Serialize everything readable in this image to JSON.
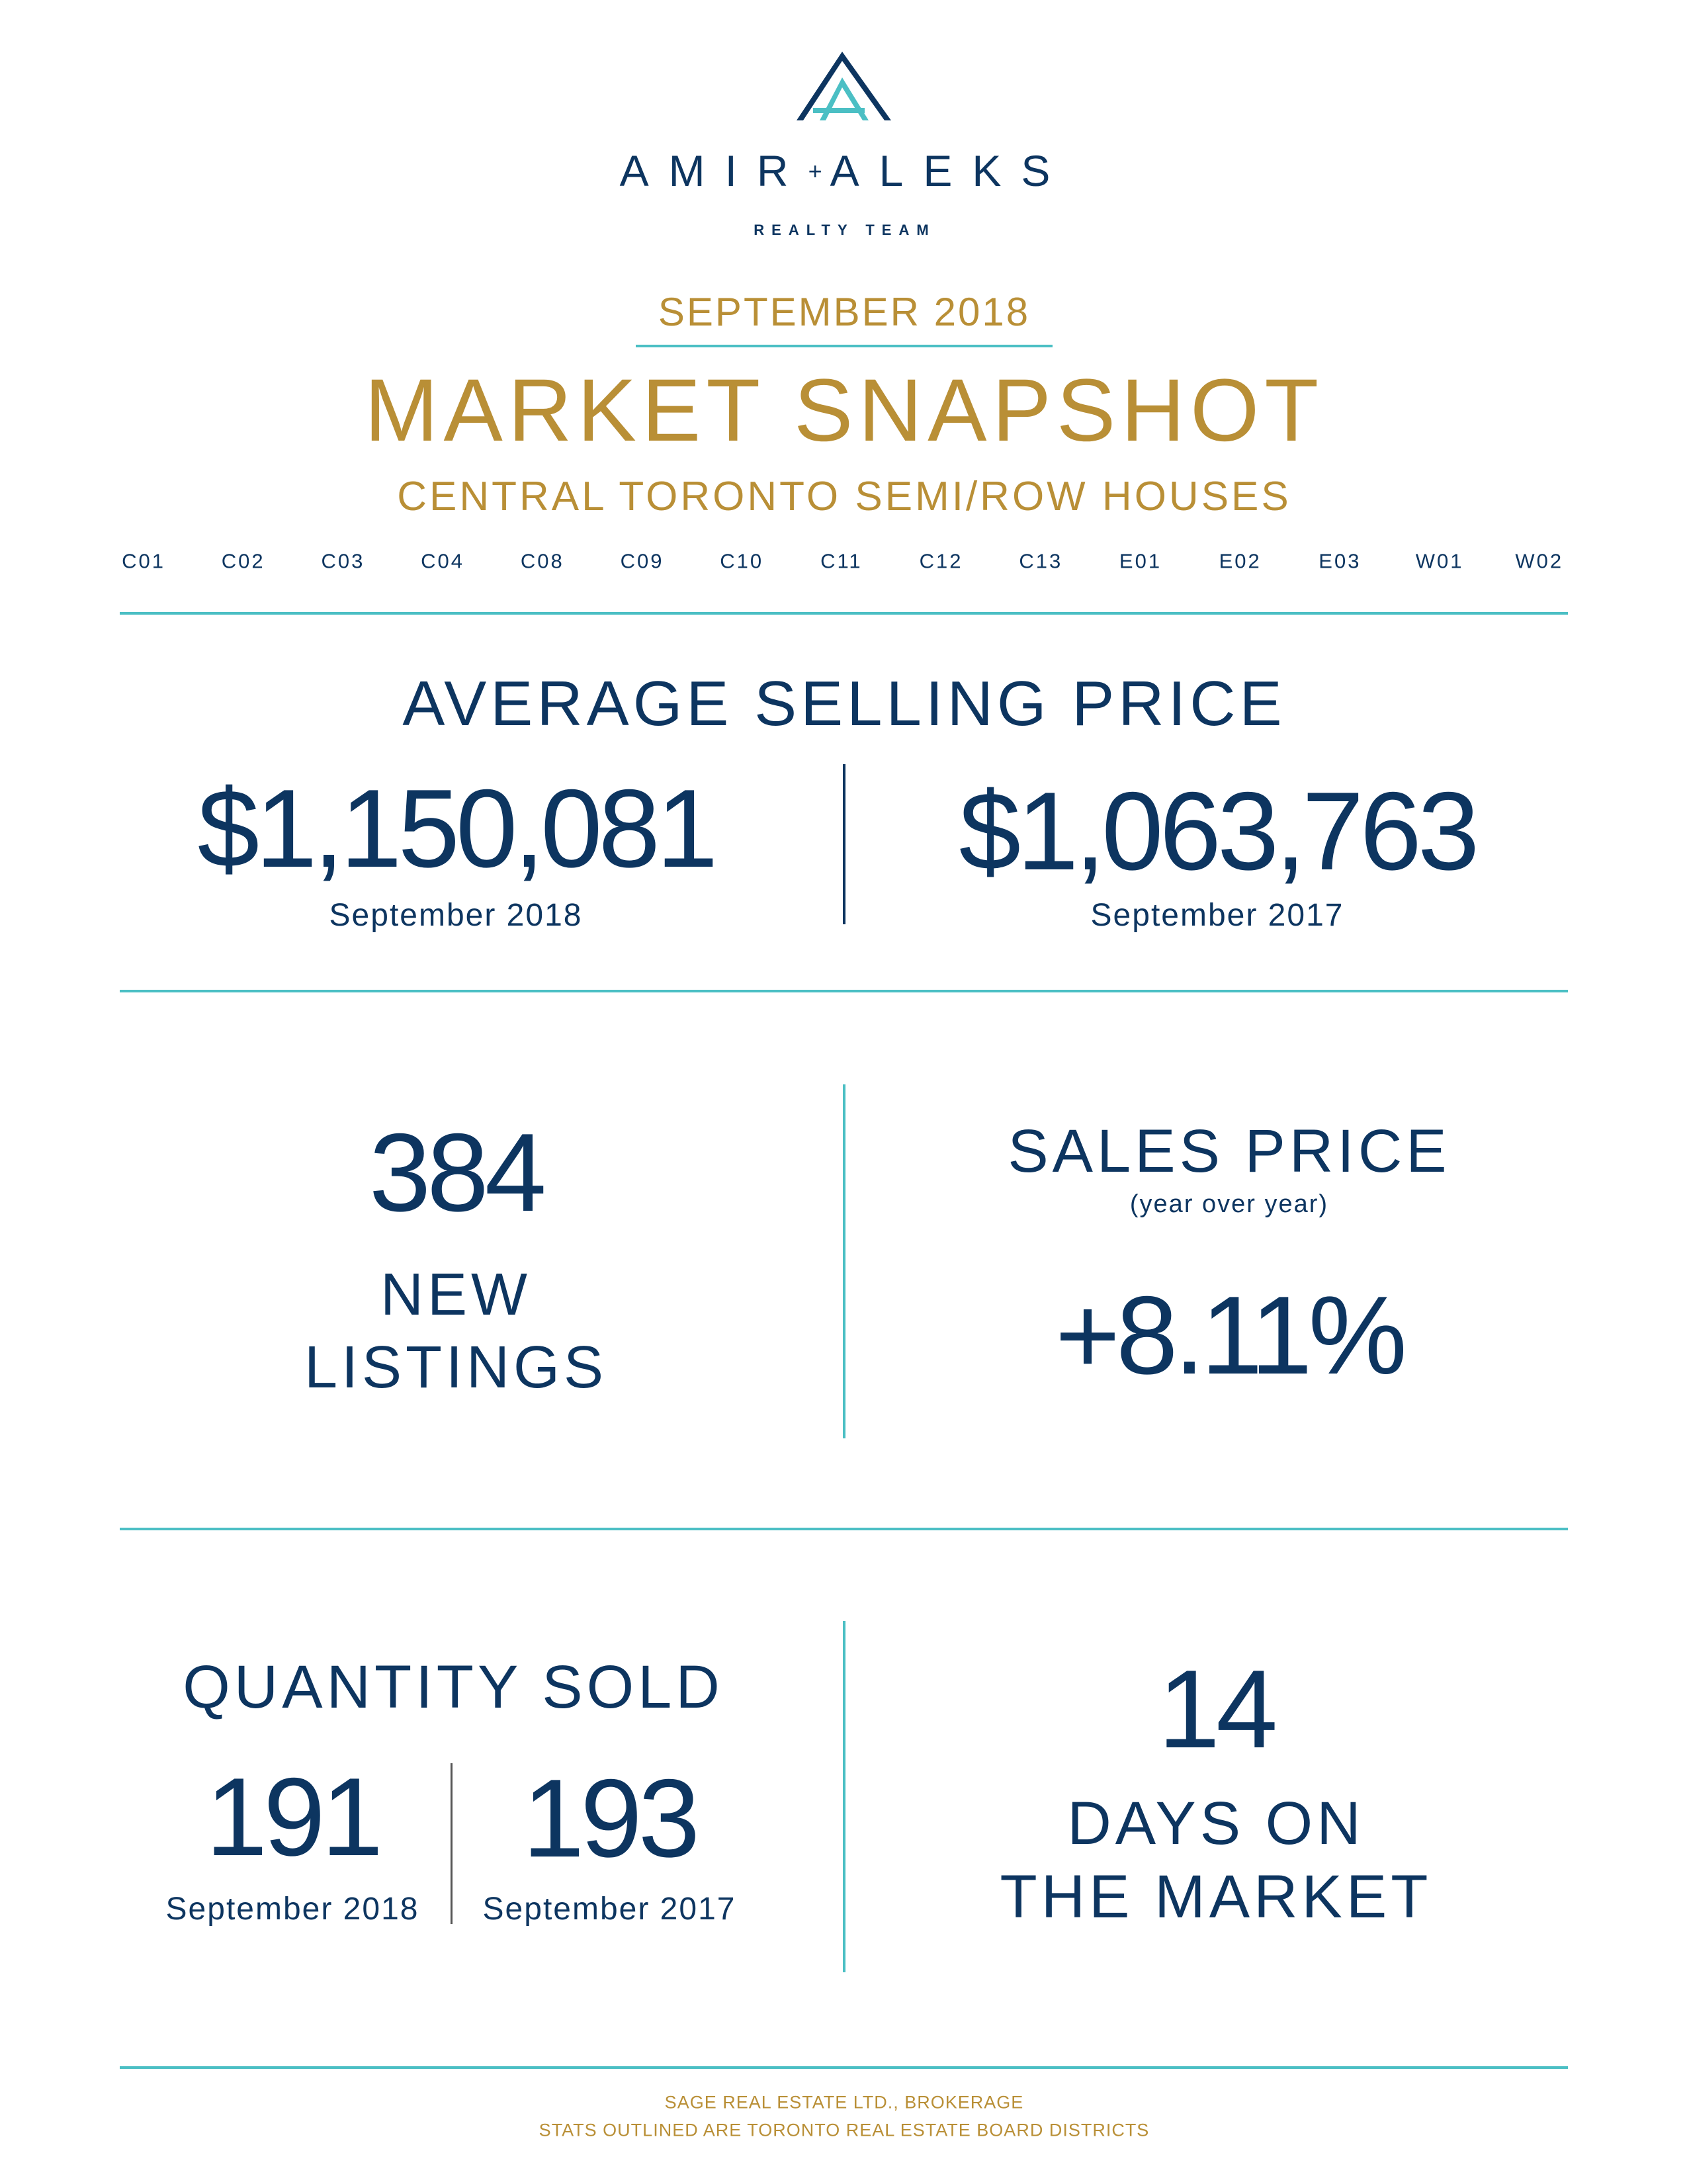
{
  "colors": {
    "navy": "#0d3560",
    "gold": "#b98f36",
    "teal": "#4bbfc4"
  },
  "logo": {
    "icon": "double-a-triangle-logo",
    "name_left": "AMIR",
    "plus": "+",
    "name_right": "ALEKS",
    "tagline": "REALTY TEAM"
  },
  "header": {
    "month": "SEPTEMBER 2018",
    "title": "MARKET SNAPSHOT",
    "subtitle": "CENTRAL TORONTO SEMI/ROW HOUSES",
    "districts": [
      "C01",
      "C02",
      "C03",
      "C04",
      "C08",
      "C09",
      "C10",
      "C11",
      "C12",
      "C13",
      "E01",
      "E02",
      "E03",
      "W01",
      "W02"
    ]
  },
  "average_selling_price": {
    "heading": "AVERAGE SELLING PRICE",
    "current": {
      "value": "$1,150,081",
      "label": "September 2018"
    },
    "previous": {
      "value": "$1,063,763",
      "label": "September 2017"
    }
  },
  "new_listings": {
    "value": "384",
    "label_line1": "NEW",
    "label_line2": "LISTINGS"
  },
  "sales_price": {
    "heading": "SALES PRICE",
    "subheading": "(year over year)",
    "value": "+8.11%"
  },
  "quantity_sold": {
    "heading": "QUANTITY SOLD",
    "current": {
      "value": "191",
      "label": "September 2018"
    },
    "previous": {
      "value": "193",
      "label": "September 2017"
    }
  },
  "days_on_market": {
    "value": "14",
    "label_line1": "DAYS ON",
    "label_line2": "THE MARKET"
  },
  "footer": {
    "line1": "SAGE REAL ESTATE LTD., BROKERAGE",
    "line2": "STATS OUTLINED ARE TORONTO REAL ESTATE BOARD DISTRICTS"
  }
}
